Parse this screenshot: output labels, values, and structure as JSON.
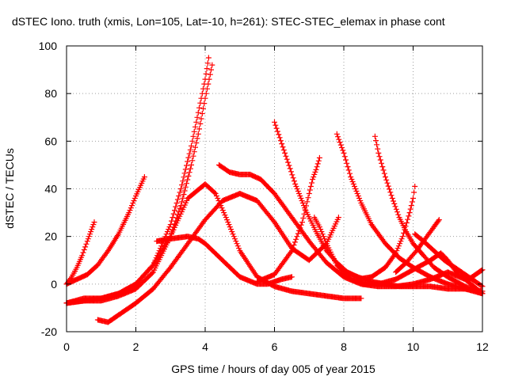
{
  "chart_data": {
    "type": "scatter",
    "title": "dSTEC Iono. truth (xmis, Lon=105, Lat=-10, h=261): STEC-STEC_elemax in phase cont",
    "xlabel": "GPS time / hours of day 005 of year 2015",
    "ylabel": "dSTEC  / TECUs",
    "xlim": [
      0,
      12
    ],
    "ylim": [
      -20,
      100
    ],
    "xticks": [
      0,
      2,
      4,
      6,
      8,
      10,
      12
    ],
    "yticks": [
      -20,
      0,
      20,
      40,
      60,
      80,
      100
    ],
    "grid": true,
    "marker": "plus",
    "color": "#ff0000",
    "series": [
      {
        "x": [
          0.0,
          0.15,
          0.3,
          0.45,
          0.6,
          0.7,
          0.8
        ],
        "y": [
          0,
          3,
          7,
          12,
          18,
          22,
          26
        ]
      },
      {
        "x": [
          0.0,
          0.3,
          0.6,
          0.9,
          1.2,
          1.5,
          1.8,
          2.0,
          2.25
        ],
        "y": [
          0,
          2,
          4,
          8,
          14,
          21,
          30,
          37,
          45
        ]
      },
      {
        "x": [
          0.0,
          0.5,
          1.0,
          1.5,
          2.0,
          2.5,
          3.0,
          3.3,
          3.6,
          3.8,
          4.0,
          4.1
        ],
        "y": [
          -8,
          -6,
          -6,
          -4,
          0,
          8,
          25,
          40,
          58,
          72,
          86,
          95
        ]
      },
      {
        "x": [
          0.0,
          0.5,
          1.0,
          1.5,
          2.0,
          2.5,
          3.0,
          3.3,
          3.6,
          3.8,
          4.0,
          4.2
        ],
        "y": [
          -8,
          -7,
          -7,
          -5,
          -2,
          5,
          20,
          33,
          50,
          63,
          78,
          92
        ]
      },
      {
        "x": [
          0.0,
          0.5,
          1.0,
          1.5,
          2.0,
          2.5,
          3.0,
          3.5,
          4.0,
          4.3,
          4.6,
          5.0,
          5.5,
          6.0,
          6.5,
          7.0,
          7.5,
          8.0,
          8.5
        ],
        "y": [
          -8,
          -7,
          -6,
          -4,
          0,
          8,
          20,
          36,
          42,
          38,
          28,
          14,
          3,
          -1,
          -3,
          -4,
          -5,
          -6,
          -6
        ]
      },
      {
        "x": [
          0.9,
          1.2,
          1.5,
          2.0,
          2.5,
          3.0,
          3.5,
          4.0,
          4.5,
          5.0,
          5.5,
          6.0,
          6.5,
          7.0,
          7.5,
          7.85
        ],
        "y": [
          -15,
          -16,
          -13,
          -8,
          -2,
          7,
          17,
          27,
          35,
          38,
          35,
          26,
          15,
          10,
          17,
          28
        ]
      },
      {
        "x": [
          2.6,
          3.0,
          3.5,
          3.8,
          4.0,
          4.5,
          5.0,
          5.5,
          5.8,
          6.0,
          6.2,
          6.5
        ],
        "y": [
          18,
          19,
          20,
          19,
          17,
          10,
          3,
          0,
          0,
          1,
          2,
          3
        ]
      },
      {
        "x": [
          4.4,
          4.7,
          5.0,
          5.3,
          5.6,
          6.0,
          6.5,
          7.0,
          7.5,
          8.0,
          8.5,
          9.0,
          9.5,
          10.0,
          10.5,
          11.0,
          11.5,
          12.0
        ],
        "y": [
          50,
          47,
          46,
          46,
          44,
          38,
          28,
          18,
          9,
          3,
          0,
          -1,
          -1,
          0,
          2,
          5,
          2,
          -4
        ]
      },
      {
        "x": [
          6.0,
          6.3,
          6.6,
          6.9,
          7.2,
          7.5,
          7.8,
          8.1,
          8.4,
          8.8,
          9.2,
          9.6,
          10.0,
          10.5,
          11.0,
          11.5,
          12.0
        ],
        "y": [
          68,
          55,
          42,
          31,
          22,
          14,
          9,
          5,
          3,
          1,
          0,
          -1,
          -1,
          -1,
          -2,
          -2,
          -3
        ]
      },
      {
        "x": [
          5.5,
          6.0,
          6.5,
          6.8,
          7.0,
          7.1,
          7.2,
          7.3
        ],
        "y": [
          1,
          4,
          14,
          26,
          38,
          44,
          48,
          53
        ]
      },
      {
        "x": [
          7.15,
          7.3,
          7.5,
          7.8,
          8.2,
          8.6,
          9.0
        ],
        "y": [
          28,
          24,
          17,
          8,
          2,
          0,
          0
        ]
      },
      {
        "x": [
          7.8,
          8.0,
          8.2,
          8.5,
          8.8,
          9.2,
          9.6,
          10.0,
          10.5,
          11.0,
          11.5,
          12.0
        ],
        "y": [
          63,
          55,
          45,
          34,
          25,
          17,
          11,
          7,
          3,
          0,
          -2,
          -4
        ]
      },
      {
        "x": [
          8.9,
          9.0,
          9.2,
          9.4,
          9.6,
          9.8,
          10.0,
          10.3,
          10.6,
          11.0,
          11.5,
          12.0
        ],
        "y": [
          62,
          55,
          45,
          36,
          28,
          22,
          17,
          12,
          7,
          3,
          -1,
          -4
        ]
      },
      {
        "x": [
          8.4,
          8.8,
          9.2,
          9.5,
          9.7,
          9.9,
          10.0,
          10.05
        ],
        "y": [
          2,
          3,
          7,
          13,
          20,
          30,
          36,
          41
        ]
      },
      {
        "x": [
          9.5,
          9.8,
          10.1,
          10.4,
          10.6,
          10.75
        ],
        "y": [
          5,
          9,
          14,
          20,
          24,
          27
        ]
      },
      {
        "x": [
          10.05,
          10.3,
          10.6,
          10.9,
          11.2,
          11.5,
          11.8,
          12.0
        ],
        "y": [
          21,
          18,
          14,
          10,
          7,
          4,
          1,
          -1
        ]
      },
      {
        "x": [
          9.0,
          9.5,
          10.0,
          10.5,
          10.8,
          11.0,
          11.3,
          11.6,
          11.9,
          12.0
        ],
        "y": [
          0,
          2,
          6,
          10,
          13,
          10,
          4,
          2,
          5,
          6
        ]
      }
    ]
  }
}
